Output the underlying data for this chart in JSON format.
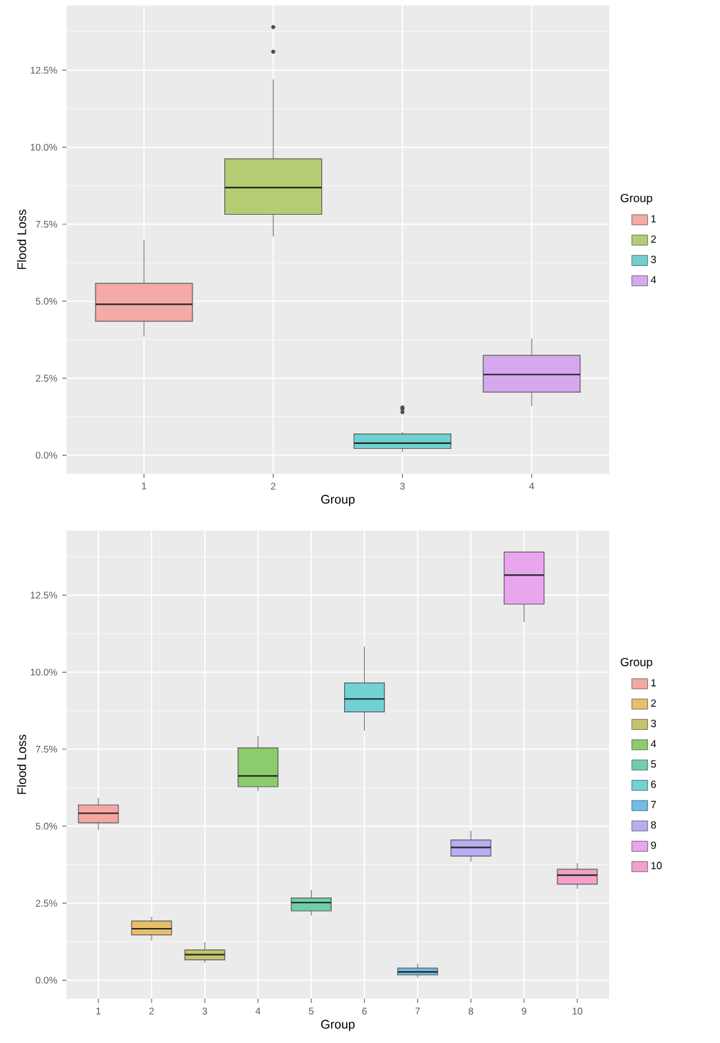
{
  "chart_data": [
    {
      "type": "box",
      "xlabel": "Group",
      "ylabel": "Flood Loss",
      "legend_title": "Group",
      "legend": "right",
      "grid": true,
      "categories": [
        "1",
        "2",
        "3",
        "4"
      ],
      "series": [
        {
          "name": "1",
          "color": "#f4aaa6",
          "boxes": [
            {
              "low": 3.85,
              "q1": 4.35,
              "median": 4.9,
              "q3": 5.58,
              "high": 7.0
            },
            null,
            null,
            null
          ]
        },
        {
          "name": "2",
          "color": "#b5cc72",
          "boxes": [
            null,
            {
              "low": 7.1,
              "q1": 7.82,
              "median": 8.69,
              "q3": 9.62,
              "high": 12.2,
              "outliers": [
                13.1,
                13.9
              ]
            },
            null,
            null
          ]
        },
        {
          "name": "3",
          "color": "#6fd2d0",
          "boxes": [
            null,
            null,
            {
              "low": 0.1,
              "q1": 0.22,
              "median": 0.39,
              "q3": 0.69,
              "high": 0.75,
              "outliers": [
                1.4,
                1.5,
                1.55
              ]
            },
            null
          ]
        },
        {
          "name": "4",
          "color": "#d6a9ef",
          "boxes": [
            null,
            null,
            null,
            {
              "low": 1.6,
              "q1": 2.05,
              "median": 2.62,
              "q3": 3.24,
              "high": 3.79
            }
          ]
        }
      ],
      "ylim": [
        -0.6,
        14.6
      ],
      "yticks": [
        {
          "value": 0,
          "label": "0.0%"
        },
        {
          "value": 2.5,
          "label": "2.5%"
        },
        {
          "value": 5,
          "label": "5.0%"
        },
        {
          "value": 7.5,
          "label": "7.5%"
        },
        {
          "value": 10,
          "label": "10.0%"
        },
        {
          "value": 12.5,
          "label": "12.5%"
        }
      ]
    },
    {
      "type": "box",
      "xlabel": "Group",
      "ylabel": "Flood Loss",
      "legend_title": "Group",
      "legend": "right",
      "grid": true,
      "categories": [
        "1",
        "2",
        "3",
        "4",
        "5",
        "6",
        "7",
        "8",
        "9",
        "10"
      ],
      "series": [
        {
          "name": "1",
          "color": "#f3a8a4",
          "boxes": [
            {
              "low": 4.88,
              "q1": 5.11,
              "median": 5.42,
              "q3": 5.69,
              "high": 5.92
            },
            null,
            null,
            null,
            null,
            null,
            null,
            null,
            null,
            null
          ]
        },
        {
          "name": "2",
          "color": "#e6bf6a",
          "boxes": [
            null,
            {
              "low": 1.28,
              "q1": 1.47,
              "median": 1.67,
              "q3": 1.92,
              "high": 2.06
            },
            null,
            null,
            null,
            null,
            null,
            null,
            null,
            null
          ]
        },
        {
          "name": "3",
          "color": "#c3c46f",
          "boxes": [
            null,
            null,
            {
              "low": 0.57,
              "q1": 0.66,
              "median": 0.83,
              "q3": 0.98,
              "high": 1.23
            },
            null,
            null,
            null,
            null,
            null,
            null,
            null
          ]
        },
        {
          "name": "4",
          "color": "#8ccc6c",
          "boxes": [
            null,
            null,
            null,
            {
              "low": 6.14,
              "q1": 6.28,
              "median": 6.63,
              "q3": 7.54,
              "high": 7.93
            },
            null,
            null,
            null,
            null,
            null,
            null
          ]
        },
        {
          "name": "5",
          "color": "#6fcfa8",
          "boxes": [
            null,
            null,
            null,
            null,
            {
              "low": 2.1,
              "q1": 2.25,
              "median": 2.52,
              "q3": 2.67,
              "high": 2.93
            },
            null,
            null,
            null,
            null,
            null
          ]
        },
        {
          "name": "6",
          "color": "#6fd3d6",
          "boxes": [
            null,
            null,
            null,
            null,
            null,
            {
              "low": 8.1,
              "q1": 8.71,
              "median": 9.13,
              "q3": 9.65,
              "high": 10.83
            },
            null,
            null,
            null,
            null
          ]
        },
        {
          "name": "7",
          "color": "#6fbcea",
          "boxes": [
            null,
            null,
            null,
            null,
            null,
            null,
            {
              "low": 0.08,
              "q1": 0.17,
              "median": 0.27,
              "q3": 0.39,
              "high": 0.54
            },
            null,
            null,
            null
          ]
        },
        {
          "name": "8",
          "color": "#b6aef0",
          "boxes": [
            null,
            null,
            null,
            null,
            null,
            null,
            null,
            {
              "low": 3.85,
              "q1": 4.03,
              "median": 4.31,
              "q3": 4.55,
              "high": 4.85
            },
            null,
            null
          ]
        },
        {
          "name": "9",
          "color": "#e9a6ee",
          "boxes": [
            null,
            null,
            null,
            null,
            null,
            null,
            null,
            null,
            {
              "low": 11.63,
              "q1": 12.21,
              "median": 13.15,
              "q3": 13.9,
              "high": 13.9
            },
            null
          ]
        },
        {
          "name": "10",
          "color": "#f3a1c9",
          "boxes": [
            null,
            null,
            null,
            null,
            null,
            null,
            null,
            null,
            null,
            {
              "low": 2.97,
              "q1": 3.12,
              "median": 3.41,
              "q3": 3.6,
              "high": 3.8
            }
          ]
        }
      ],
      "ylim": [
        -0.6,
        14.6
      ],
      "yticks": [
        {
          "value": 0,
          "label": "0.0%"
        },
        {
          "value": 2.5,
          "label": "2.5%"
        },
        {
          "value": 5,
          "label": "5.0%"
        },
        {
          "value": 7.5,
          "label": "7.5%"
        },
        {
          "value": 10,
          "label": "10.0%"
        },
        {
          "value": 12.5,
          "label": "12.5%"
        }
      ]
    }
  ]
}
